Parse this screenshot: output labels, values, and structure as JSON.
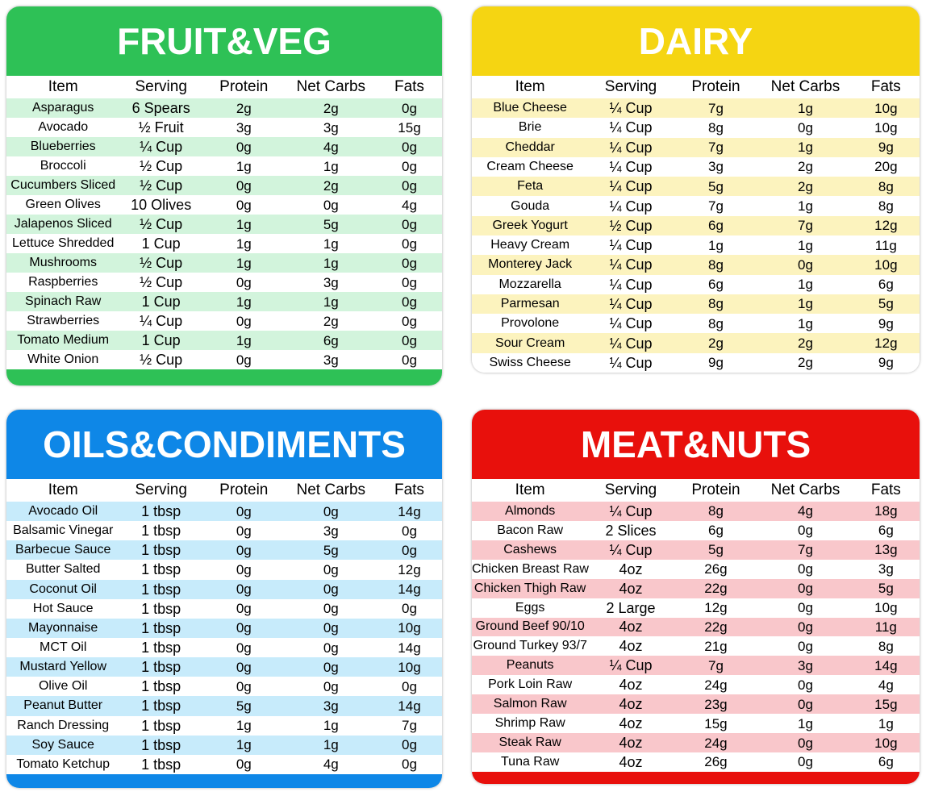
{
  "chart_data": [
    {
      "type": "table",
      "title": "FRUIT&VEG",
      "header_color": "#2ec156",
      "row_tint": "#d2f4dc",
      "columns": [
        "Item",
        "Serving",
        "Protein",
        "Net Carbs",
        "Fats"
      ],
      "rows": [
        [
          "Asparagus",
          "6 Spears",
          "2g",
          "2g",
          "0g"
        ],
        [
          "Avocado",
          "½ Fruit",
          "3g",
          "3g",
          "15g"
        ],
        [
          "Blueberries",
          "¼ Cup",
          "0g",
          "4g",
          "0g"
        ],
        [
          "Broccoli",
          "½ Cup",
          "1g",
          "1g",
          "0g"
        ],
        [
          "Cucumbers Sliced",
          "½ Cup",
          "0g",
          "2g",
          "0g"
        ],
        [
          "Green Olives",
          "10 Olives",
          "0g",
          "0g",
          "4g"
        ],
        [
          "Jalapenos Sliced",
          "½ Cup",
          "1g",
          "5g",
          "0g"
        ],
        [
          "Lettuce Shredded",
          "1 Cup",
          "1g",
          "1g",
          "0g"
        ],
        [
          "Mushrooms",
          "½ Cup",
          "1g",
          "1g",
          "0g"
        ],
        [
          "Raspberries",
          "½ Cup",
          "0g",
          "3g",
          "0g"
        ],
        [
          "Spinach Raw",
          "1 Cup",
          "1g",
          "1g",
          "0g"
        ],
        [
          "Strawberries",
          "¼ Cup",
          "0g",
          "2g",
          "0g"
        ],
        [
          "Tomato Medium",
          "1 Cup",
          "1g",
          "6g",
          "0g"
        ],
        [
          "White Onion",
          "½ Cup",
          "0g",
          "3g",
          "0g"
        ]
      ]
    },
    {
      "type": "table",
      "title": "DAIRY",
      "header_color": "#f5d512",
      "row_tint": "#fcf3be",
      "columns": [
        "Item",
        "Serving",
        "Protein",
        "Net Carbs",
        "Fats"
      ],
      "rows": [
        [
          "Blue Cheese",
          "¼ Cup",
          "7g",
          "1g",
          "10g"
        ],
        [
          "Brie",
          "¼ Cup",
          "8g",
          "0g",
          "10g"
        ],
        [
          "Cheddar",
          "¼ Cup",
          "7g",
          "1g",
          "9g"
        ],
        [
          "Cream Cheese",
          "¼ Cup",
          "3g",
          "2g",
          "20g"
        ],
        [
          "Feta",
          "¼ Cup",
          "5g",
          "2g",
          "8g"
        ],
        [
          "Gouda",
          "¼ Cup",
          "7g",
          "1g",
          "8g"
        ],
        [
          "Greek Yogurt",
          "½ Cup",
          "6g",
          "7g",
          "12g"
        ],
        [
          "Heavy Cream",
          "¼ Cup",
          "1g",
          "1g",
          "11g"
        ],
        [
          "Monterey Jack",
          "¼ Cup",
          "8g",
          "0g",
          "10g"
        ],
        [
          "Mozzarella",
          "¼ Cup",
          "6g",
          "1g",
          "6g"
        ],
        [
          "Parmesan",
          "¼ Cup",
          "8g",
          "1g",
          "5g"
        ],
        [
          "Provolone",
          "¼ Cup",
          "8g",
          "1g",
          "9g"
        ],
        [
          "Sour Cream",
          "¼ Cup",
          "2g",
          "2g",
          "12g"
        ],
        [
          "Swiss Cheese",
          "¼ Cup",
          "9g",
          "2g",
          "9g"
        ]
      ]
    },
    {
      "type": "table",
      "title": "OILS&CONDIMENTS",
      "header_color": "#0e87e7",
      "row_tint": "#c7ebfb",
      "columns": [
        "Item",
        "Serving",
        "Protein",
        "Net Carbs",
        "Fats"
      ],
      "rows": [
        [
          "Avocado Oil",
          "1 tbsp",
          "0g",
          "0g",
          "14g"
        ],
        [
          "Balsamic Vinegar",
          "1 tbsp",
          "0g",
          "3g",
          "0g"
        ],
        [
          "Barbecue Sauce",
          "1 tbsp",
          "0g",
          "5g",
          "0g"
        ],
        [
          "Butter Salted",
          "1 tbsp",
          "0g",
          "0g",
          "12g"
        ],
        [
          "Coconut Oil",
          "1 tbsp",
          "0g",
          "0g",
          "14g"
        ],
        [
          "Hot Sauce",
          "1 tbsp",
          "0g",
          "0g",
          "0g"
        ],
        [
          "Mayonnaise",
          "1 tbsp",
          "0g",
          "0g",
          "10g"
        ],
        [
          "MCT Oil",
          "1 tbsp",
          "0g",
          "0g",
          "14g"
        ],
        [
          "Mustard Yellow",
          "1 tbsp",
          "0g",
          "0g",
          "10g"
        ],
        [
          "Olive Oil",
          "1 tbsp",
          "0g",
          "0g",
          "0g"
        ],
        [
          "Peanut Butter",
          "1 tbsp",
          "5g",
          "3g",
          "14g"
        ],
        [
          "Ranch Dressing",
          "1 tbsp",
          "1g",
          "1g",
          "7g"
        ],
        [
          "Soy Sauce",
          "1 tbsp",
          "1g",
          "1g",
          "0g"
        ],
        [
          "Tomato Ketchup",
          "1 tbsp",
          "0g",
          "4g",
          "0g"
        ]
      ]
    },
    {
      "type": "table",
      "title": "MEAT&NUTS",
      "header_color": "#e8100c",
      "row_tint": "#f9c7cb",
      "columns": [
        "Item",
        "Serving",
        "Protein",
        "Net Carbs",
        "Fats"
      ],
      "rows": [
        [
          "Almonds",
          "¼ Cup",
          "8g",
          "4g",
          "18g"
        ],
        [
          "Bacon Raw",
          "2 Slices",
          "6g",
          "0g",
          "6g"
        ],
        [
          "Cashews",
          "¼ Cup",
          "5g",
          "7g",
          "13g"
        ],
        [
          "Chicken Breast Raw",
          "4oz",
          "26g",
          "0g",
          "3g"
        ],
        [
          "Chicken Thigh Raw",
          "4oz",
          "22g",
          "0g",
          "5g"
        ],
        [
          "Eggs",
          "2 Large",
          "12g",
          "0g",
          "10g"
        ],
        [
          "Ground Beef 90/10",
          "4oz",
          "22g",
          "0g",
          "11g"
        ],
        [
          "Ground Turkey 93/7",
          "4oz",
          "21g",
          "0g",
          "8g"
        ],
        [
          "Peanuts",
          "¼ Cup",
          "7g",
          "3g",
          "14g"
        ],
        [
          "Pork Loin Raw",
          "4oz",
          "24g",
          "0g",
          "4g"
        ],
        [
          "Salmon Raw",
          "4oz",
          "23g",
          "0g",
          "15g"
        ],
        [
          "Shrimp Raw",
          "4oz",
          "15g",
          "1g",
          "1g"
        ],
        [
          "Steak Raw",
          "4oz",
          "24g",
          "0g",
          "10g"
        ],
        [
          "Tuna Raw",
          "4oz",
          "26g",
          "0g",
          "6g"
        ]
      ]
    }
  ]
}
